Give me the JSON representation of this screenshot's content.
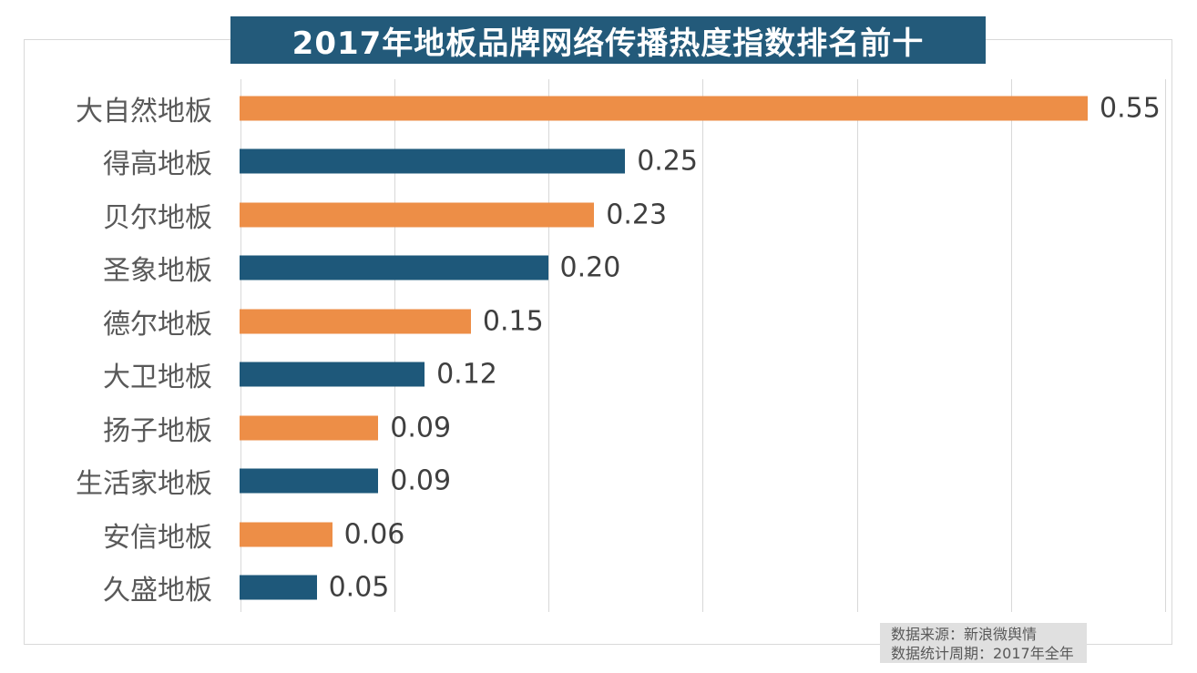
{
  "title": "2017年地板品牌网络传播热度指数排名前十",
  "colors": {
    "banner_bg": "#235a7a",
    "bar_orange": "#ed8e47",
    "bar_teal": "#1e587a",
    "category_label": "#595959",
    "value_label": "#3f3f3f",
    "gridline": "#d8d8d8",
    "frame_border": "#d9d9d9",
    "footer_bg": "#e0e0e0",
    "footer_text": "#595959"
  },
  "chart_data": {
    "type": "bar",
    "orientation": "horizontal",
    "title": "2017年地板品牌网络传播热度指数排名前十",
    "categories": [
      "大自然地板",
      "得高地板",
      "贝尔地板",
      "圣象地板",
      "德尔地板",
      "大卫地板",
      "扬子地板",
      "生活家地板",
      "安信地板",
      "久盛地板"
    ],
    "values": [
      0.55,
      0.25,
      0.23,
      0.2,
      0.15,
      0.12,
      0.09,
      0.09,
      0.06,
      0.05
    ],
    "value_labels": [
      "0.55",
      "0.25",
      "0.23",
      "0.20",
      "0.15",
      "0.12",
      "0.09",
      "0.09",
      "0.06",
      "0.05"
    ],
    "bar_color_pattern": [
      "#ed8e47",
      "#1e587a"
    ],
    "xlim": [
      0,
      0.6
    ],
    "grid": true,
    "gridline_interval": 0.1,
    "axis_tick_labels_visible": false,
    "legend": false,
    "xlabel": "",
    "ylabel": ""
  },
  "footer": {
    "line1": "数据来源：新浪微舆情",
    "line2": "数据统计周期：2017年全年"
  }
}
